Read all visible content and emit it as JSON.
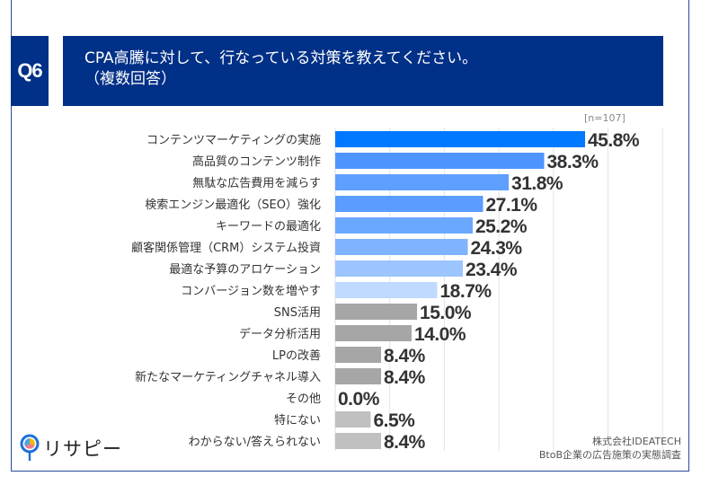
{
  "header": {
    "question_no": "Q6",
    "title_line1": "CPA高騰に対して、行なっている対策を教えてください。",
    "title_line2": "（複数回答）"
  },
  "sample_size": "[n=107]",
  "footer": {
    "company": "株式会社IDEATECH",
    "survey": "BtoB企業の広告施策の実態調査",
    "logo_text": "リサピー"
  },
  "chart_data": {
    "type": "bar",
    "orientation": "horizontal",
    "unit": "%",
    "xlim": [
      0,
      60
    ],
    "grid": true,
    "categories": [
      "コンテンツマーケティングの実施",
      "高品質のコンテンツ制作",
      "無駄な広告費用を減らす",
      "検索エンジン最適化（SEO）強化",
      "キーワードの最適化",
      "顧客関係管理（CRM）システム投資",
      "最適な予算のアロケーション",
      "コンバージョン数を増やす",
      "SNS活用",
      "データ分析活用",
      "LPの改善",
      "新たなマーケティングチャネル導入",
      "その他",
      "特にない",
      "わからない/答えられない"
    ],
    "values": [
      45.8,
      38.3,
      31.8,
      27.1,
      25.2,
      24.3,
      23.4,
      18.7,
      15.0,
      14.0,
      8.4,
      8.4,
      0.0,
      6.5,
      8.4
    ],
    "labels": [
      "45.8%",
      "38.3%",
      "31.8%",
      "27.1%",
      "25.2%",
      "24.3%",
      "23.4%",
      "18.7%",
      "15.0%",
      "14.0%",
      "8.4%",
      "8.4%",
      "0.0%",
      "6.5%",
      "8.4%"
    ],
    "colors": [
      "#0078ff",
      "#4f95ff",
      "#5e9fff",
      "#5b9cff",
      "#6aa7ff",
      "#80b3ff",
      "#9cc5ff",
      "#c0d9ff",
      "#a6a6a6",
      "#a6a6a6",
      "#a6a6a6",
      "#a6a6a6",
      "#a6a6a6",
      "#c0c0c0",
      "#c0c0c0"
    ]
  },
  "colors": {
    "header_bg": "#003087",
    "grid": "#e0e0e0",
    "value_text": "#333333"
  }
}
